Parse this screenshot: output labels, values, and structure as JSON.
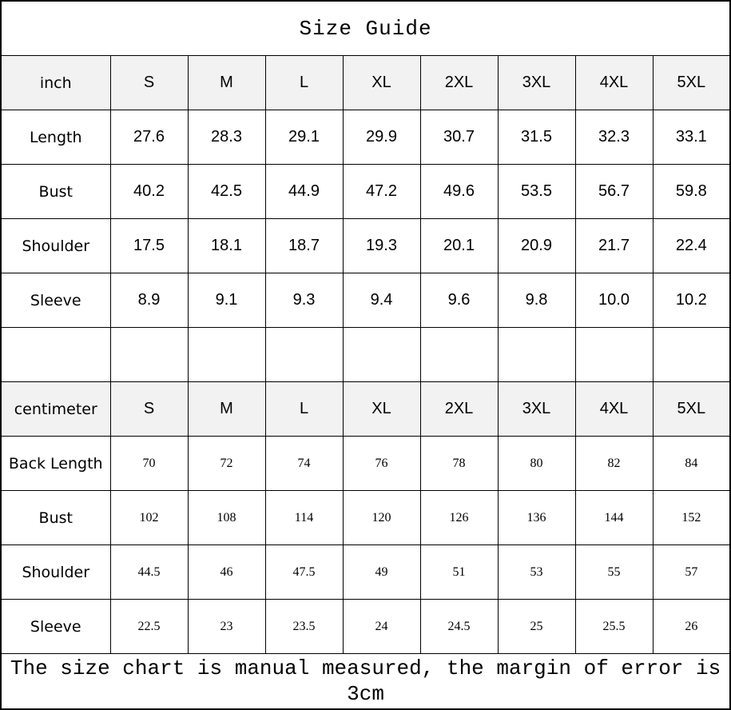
{
  "title": "Size Guide",
  "sizes": [
    "S",
    "M",
    "L",
    "XL",
    "2XL",
    "3XL",
    "4XL",
    "5XL"
  ],
  "inch": {
    "unit_label": "inch",
    "rows": [
      {
        "label": "Length",
        "values": [
          "27.6",
          "28.3",
          "29.1",
          "29.9",
          "30.7",
          "31.5",
          "32.3",
          "33.1"
        ]
      },
      {
        "label": "Bust",
        "values": [
          "40.2",
          "42.5",
          "44.9",
          "47.2",
          "49.6",
          "53.5",
          "56.7",
          "59.8"
        ]
      },
      {
        "label": "Shoulder",
        "values": [
          "17.5",
          "18.1",
          "18.7",
          "19.3",
          "20.1",
          "20.9",
          "21.7",
          "22.4"
        ]
      },
      {
        "label": "Sleeve",
        "values": [
          "8.9",
          "9.1",
          "9.3",
          "9.4",
          "9.6",
          "9.8",
          "10.0",
          "10.2"
        ]
      }
    ]
  },
  "centimeter": {
    "unit_label": "centimeter",
    "rows": [
      {
        "label": "Back Length",
        "values": [
          "70",
          "72",
          "74",
          "76",
          "78",
          "80",
          "82",
          "84"
        ]
      },
      {
        "label": "Bust",
        "values": [
          "102",
          "108",
          "114",
          "120",
          "126",
          "136",
          "144",
          "152"
        ]
      },
      {
        "label": "Shoulder",
        "values": [
          "44.5",
          "46",
          "47.5",
          "49",
          "51",
          "53",
          "55",
          "57"
        ]
      },
      {
        "label": "Sleeve",
        "values": [
          "22.5",
          "23",
          "23.5",
          "24",
          "24.5",
          "25",
          "25.5",
          "26"
        ]
      }
    ]
  },
  "note": "The size chart is manual measured, the margin of error is 3cm"
}
